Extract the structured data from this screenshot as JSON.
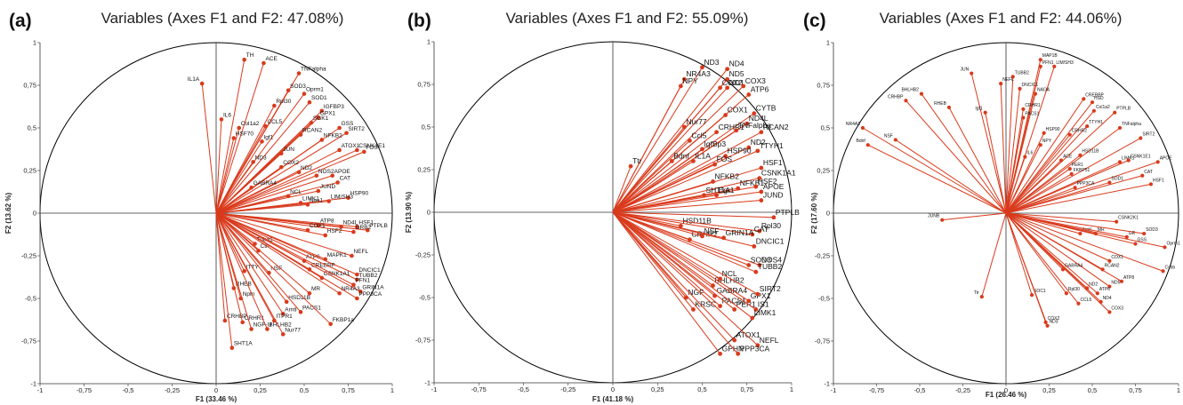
{
  "colors": {
    "vector": "#d93a1c",
    "axis": "#333333",
    "circle": "#000000"
  },
  "chart_data": [
    {
      "type": "scatter",
      "panel_label": "(a)",
      "title": "Variables (Axes F1 and F2: 47.08%)",
      "xlabel": "F1 (33.46 %)",
      "ylabel": "F2 (13.62 %)",
      "xlim": [
        -1,
        1
      ],
      "ylim": [
        -1,
        1
      ],
      "xticks": [
        "-1",
        "-0,75",
        "-0,5",
        "-0,25",
        "0",
        "0,25",
        "0,5",
        "0,75",
        "1"
      ],
      "yticks": [
        "-1",
        "-0,75",
        "-0,5",
        "-0,25",
        "0",
        "0,25",
        "0,5",
        "0,75",
        "1"
      ],
      "grid": false,
      "points": [
        {
          "label": "IL1A",
          "x": -0.08,
          "y": 0.76
        },
        {
          "label": "IL6",
          "x": 0.03,
          "y": 0.55
        },
        {
          "label": "TH",
          "x": 0.16,
          "y": 0.9
        },
        {
          "label": "ACE",
          "x": 0.27,
          "y": 0.88
        },
        {
          "label": "Col1a2",
          "x": 0.13,
          "y": 0.5
        },
        {
          "label": "HSF70",
          "x": 0.1,
          "y": 0.44
        },
        {
          "label": "TNFalpha",
          "x": 0.47,
          "y": 0.82
        },
        {
          "label": "SOD3",
          "x": 0.41,
          "y": 0.72
        },
        {
          "label": "Oprm1",
          "x": 0.5,
          "y": 0.7
        },
        {
          "label": "Rpl30",
          "x": 0.33,
          "y": 0.63
        },
        {
          "label": "SOD1",
          "x": 0.53,
          "y": 0.65
        },
        {
          "label": "IGFBP3",
          "x": 0.6,
          "y": 0.6
        },
        {
          "label": "CCL5",
          "x": 0.28,
          "y": 0.51
        },
        {
          "label": "GPX1",
          "x": 0.58,
          "y": 0.56
        },
        {
          "label": "SGK1",
          "x": 0.54,
          "y": 0.53
        },
        {
          "label": "GSS",
          "x": 0.7,
          "y": 0.5
        },
        {
          "label": "SIRT2",
          "x": 0.74,
          "y": 0.47
        },
        {
          "label": "Igf1",
          "x": 0.26,
          "y": 0.42
        },
        {
          "label": "RCAN2",
          "x": 0.48,
          "y": 0.46
        },
        {
          "label": "NFKB2",
          "x": 0.6,
          "y": 0.43
        },
        {
          "label": "CSNK1E1",
          "x": 0.8,
          "y": 0.37
        },
        {
          "label": "ATOX1",
          "x": 0.7,
          "y": 0.37
        },
        {
          "label": "FOS",
          "x": 0.84,
          "y": 0.36
        },
        {
          "label": "JUN",
          "x": 0.37,
          "y": 0.35
        },
        {
          "label": "ND3",
          "x": 0.21,
          "y": 0.3
        },
        {
          "label": "COX2",
          "x": 0.37,
          "y": 0.27
        },
        {
          "label": "ND2",
          "x": 0.47,
          "y": 0.24
        },
        {
          "label": "NOS2",
          "x": 0.57,
          "y": 0.22
        },
        {
          "label": "APOE",
          "x": 0.66,
          "y": 0.22
        },
        {
          "label": "CAT",
          "x": 0.69,
          "y": 0.18
        },
        {
          "label": "JUND",
          "x": 0.58,
          "y": 0.13
        },
        {
          "label": "HSP90",
          "x": 0.75,
          "y": 0.09
        },
        {
          "label": "LIM/SH3",
          "x": 0.64,
          "y": 0.07
        },
        {
          "label": "Nos1",
          "x": 0.52,
          "y": 0.05
        },
        {
          "label": "GABRA4",
          "x": 0.2,
          "y": 0.15
        },
        {
          "label": "NCL",
          "x": 0.41,
          "y": 0.1
        },
        {
          "label": "LIMK1",
          "x": 0.48,
          "y": 0.06
        },
        {
          "label": "ATP8",
          "x": 0.58,
          "y": -0.07
        },
        {
          "label": "ND4L",
          "x": 0.71,
          "y": -0.08
        },
        {
          "label": "HSF1",
          "x": 0.8,
          "y": -0.08
        },
        {
          "label": "PTPLB",
          "x": 0.86,
          "y": -0.1
        },
        {
          "label": "GRB2",
          "x": 0.78,
          "y": -0.11
        },
        {
          "label": "HSF2",
          "x": 0.62,
          "y": -0.13
        },
        {
          "label": "COX1",
          "x": 0.52,
          "y": -0.1
        },
        {
          "label": "Tuba1",
          "x": 0.22,
          "y": -0.18
        },
        {
          "label": "Ctn",
          "x": 0.24,
          "y": -0.22
        },
        {
          "label": "NEFL",
          "x": 0.77,
          "y": -0.25
        },
        {
          "label": "ATP6",
          "x": 0.5,
          "y": -0.28
        },
        {
          "label": "MAPK1",
          "x": 0.62,
          "y": -0.27
        },
        {
          "label": "CREBBP",
          "x": 0.53,
          "y": -0.33
        },
        {
          "label": "NSF",
          "x": 0.3,
          "y": -0.35
        },
        {
          "label": "ITTY",
          "x": 0.16,
          "y": -0.34
        },
        {
          "label": "DNCIC1",
          "x": 0.8,
          "y": -0.36
        },
        {
          "label": "TUBB2",
          "x": 0.8,
          "y": -0.39
        },
        {
          "label": "CSNK1A1",
          "x": 0.6,
          "y": -0.38
        },
        {
          "label": "PFN1",
          "x": 0.78,
          "y": -0.42
        },
        {
          "label": "GRIN1A",
          "x": 0.82,
          "y": -0.46
        },
        {
          "label": "PPP3CA",
          "x": 0.8,
          "y": -0.5
        },
        {
          "label": "NR4A3",
          "x": 0.7,
          "y": -0.47
        },
        {
          "label": "MR",
          "x": 0.53,
          "y": -0.47
        },
        {
          "label": "RHEB",
          "x": 0.1,
          "y": -0.44
        },
        {
          "label": "Nptn",
          "x": 0.14,
          "y": -0.5
        },
        {
          "label": "HSD11B",
          "x": 0.4,
          "y": -0.52
        },
        {
          "label": "PACS1",
          "x": 0.48,
          "y": -0.58
        },
        {
          "label": "Arntl",
          "x": 0.38,
          "y": -0.59
        },
        {
          "label": "ITPR1",
          "x": 0.33,
          "y": -0.63
        },
        {
          "label": "CRHBP",
          "x": 0.05,
          "y": -0.63
        },
        {
          "label": "CRHR1",
          "x": 0.15,
          "y": -0.64
        },
        {
          "label": "FKBP1a",
          "x": 0.65,
          "y": -0.65
        },
        {
          "label": "BHLHB2",
          "x": 0.29,
          "y": -0.68
        },
        {
          "label": "NGF-U",
          "x": 0.2,
          "y": -0.68
        },
        {
          "label": "Nur77",
          "x": 0.38,
          "y": -0.71
        },
        {
          "label": "SHT1A",
          "x": 0.09,
          "y": -0.79
        }
      ]
    },
    {
      "type": "scatter",
      "panel_label": "(b)",
      "title": "Variables (Axes F1 and F2: 55.09%)",
      "xlabel": "F1 (41.18 %)",
      "ylabel": "F2 (13.90 %)",
      "xlim": [
        -1,
        1
      ],
      "ylim": [
        -1,
        1
      ],
      "xticks": [
        "-1",
        "-0,75",
        "-0,5",
        "-0,25",
        "0",
        "0,25",
        "0,5",
        "0,75",
        "1"
      ],
      "yticks": [
        "-1",
        "-0,75",
        "-0,5",
        "-0,25",
        "0",
        "0,25",
        "0,5",
        "0,75",
        "1"
      ],
      "grid": false,
      "points": [
        {
          "label": "ND3",
          "x": 0.5,
          "y": 0.85
        },
        {
          "label": "ND4",
          "x": 0.64,
          "y": 0.84
        },
        {
          "label": "NR4A3",
          "x": 0.4,
          "y": 0.78
        },
        {
          "label": "ND5",
          "x": 0.64,
          "y": 0.78
        },
        {
          "label": "NPY",
          "x": 0.38,
          "y": 0.74
        },
        {
          "label": "COX2",
          "x": 0.6,
          "y": 0.73
        },
        {
          "label": "ND1",
          "x": 0.64,
          "y": 0.73
        },
        {
          "label": "COX3",
          "x": 0.73,
          "y": 0.74
        },
        {
          "label": "ATP6",
          "x": 0.76,
          "y": 0.69
        },
        {
          "label": "COX1",
          "x": 0.63,
          "y": 0.57
        },
        {
          "label": "CYTB",
          "x": 0.79,
          "y": 0.58
        },
        {
          "label": "ND4L",
          "x": 0.75,
          "y": 0.52
        },
        {
          "label": "RCAN2",
          "x": 0.83,
          "y": 0.47
        },
        {
          "label": "Nur77",
          "x": 0.4,
          "y": 0.5
        },
        {
          "label": "CRHR1",
          "x": 0.58,
          "y": 0.47
        },
        {
          "label": "TNFalpha",
          "x": 0.69,
          "y": 0.48
        },
        {
          "label": "Ccl5",
          "x": 0.43,
          "y": 0.42
        },
        {
          "label": "IgfBp3",
          "x": 0.5,
          "y": 0.37
        },
        {
          "label": "ND2",
          "x": 0.76,
          "y": 0.38
        },
        {
          "label": "TTYH1",
          "x": 0.81,
          "y": 0.36
        },
        {
          "label": "HSP90",
          "x": 0.63,
          "y": 0.33
        },
        {
          "label": "IL1A",
          "x": 0.45,
          "y": 0.3
        },
        {
          "label": "FOS",
          "x": 0.57,
          "y": 0.28
        },
        {
          "label": "Bdnf",
          "x": 0.33,
          "y": 0.3
        },
        {
          "label": "Ttr",
          "x": 0.1,
          "y": 0.27
        },
        {
          "label": "HSF1",
          "x": 0.83,
          "y": 0.26
        },
        {
          "label": "CSNK1A1",
          "x": 0.82,
          "y": 0.2
        },
        {
          "label": "NFKB2",
          "x": 0.56,
          "y": 0.18
        },
        {
          "label": "NFKB1",
          "x": 0.7,
          "y": 0.14
        },
        {
          "label": "HSF2",
          "x": 0.8,
          "y": 0.15
        },
        {
          "label": "APOE",
          "x": 0.83,
          "y": 0.12
        },
        {
          "label": "JUND",
          "x": 0.83,
          "y": 0.07
        },
        {
          "label": "SHT1A",
          "x": 0.51,
          "y": 0.1
        },
        {
          "label": "Egr1",
          "x": 0.58,
          "y": 0.1
        },
        {
          "label": "HSD11B",
          "x": 0.38,
          "y": -0.08
        },
        {
          "label": "CRHR2",
          "x": 0.43,
          "y": -0.16
        },
        {
          "label": "PTPLB",
          "x": 0.9,
          "y": -0.03
        },
        {
          "label": "Rpl30",
          "x": 0.82,
          "y": -0.11
        },
        {
          "label": "CAT",
          "x": 0.78,
          "y": -0.13
        },
        {
          "label": "NSF",
          "x": 0.5,
          "y": -0.14
        },
        {
          "label": "GRIN1A",
          "x": 0.62,
          "y": -0.15
        },
        {
          "label": "DNCIC1",
          "x": 0.79,
          "y": -0.2
        },
        {
          "label": "SOD3",
          "x": 0.76,
          "y": -0.31
        },
        {
          "label": "NOS4",
          "x": 0.82,
          "y": -0.31
        },
        {
          "label": "TUBB2",
          "x": 0.8,
          "y": -0.35
        },
        {
          "label": "BHLHB2",
          "x": 0.56,
          "y": -0.43
        },
        {
          "label": "NCL",
          "x": 0.6,
          "y": -0.39
        },
        {
          "label": "GABRA4",
          "x": 0.57,
          "y": -0.49
        },
        {
          "label": "PACS1",
          "x": 0.6,
          "y": -0.55
        },
        {
          "label": "KRSC",
          "x": 0.45,
          "y": -0.57
        },
        {
          "label": "NGF",
          "x": 0.41,
          "y": -0.5
        },
        {
          "label": "PER1",
          "x": 0.68,
          "y": -0.57
        },
        {
          "label": "GPX1",
          "x": 0.76,
          "y": -0.52
        },
        {
          "label": "IS1",
          "x": 0.8,
          "y": -0.57
        },
        {
          "label": "SIRT2",
          "x": 0.81,
          "y": -0.48
        },
        {
          "label": "LIMK1",
          "x": 0.78,
          "y": -0.62
        },
        {
          "label": "ATOX1",
          "x": 0.68,
          "y": -0.75
        },
        {
          "label": "NEFL",
          "x": 0.81,
          "y": -0.78
        },
        {
          "label": "GPHN",
          "x": 0.6,
          "y": -0.83
        },
        {
          "label": "PPP3CA",
          "x": 0.7,
          "y": -0.83
        }
      ]
    },
    {
      "type": "scatter",
      "panel_label": "(c)",
      "title": "Variables (Axes F1 and F2: 44.06%)",
      "xlabel": "F1 (26.46 %)",
      "ylabel": "F2 (17.60 %)",
      "xlim": [
        -1,
        1
      ],
      "ylim": [
        -1,
        1
      ],
      "xticks": [
        "-1",
        "-0,75",
        "-0,5",
        "-0,25",
        "0",
        "0,25",
        "0,5",
        "0,75",
        "1"
      ],
      "yticks": [
        "-1",
        "-0,75",
        "-0,5",
        "-0,25",
        "0",
        "0,25",
        "0,5",
        "0,75",
        "1"
      ],
      "grid": false,
      "points": [
        {
          "label": "JUN",
          "x": -0.2,
          "y": 0.82
        },
        {
          "label": "NR4A3",
          "x": -0.83,
          "y": 0.5
        },
        {
          "label": "Bdnf",
          "x": -0.8,
          "y": 0.4
        },
        {
          "label": "NSF",
          "x": -0.64,
          "y": 0.43
        },
        {
          "label": "CRHBP",
          "x": -0.58,
          "y": 0.66
        },
        {
          "label": "BHLHB2",
          "x": -0.49,
          "y": 0.7
        },
        {
          "label": "RHEB",
          "x": -0.33,
          "y": 0.62
        },
        {
          "label": "Igf1",
          "x": -0.12,
          "y": 0.59
        },
        {
          "label": "MAP1B",
          "x": 0.2,
          "y": 0.9
        },
        {
          "label": "PFN1",
          "x": 0.2,
          "y": 0.86
        },
        {
          "label": "LIM/SH3",
          "x": 0.28,
          "y": 0.86
        },
        {
          "label": "TUBB2",
          "x": 0.04,
          "y": 0.8
        },
        {
          "label": "NEFL",
          "x": -0.03,
          "y": 0.76
        },
        {
          "label": "DNCIC1",
          "x": 0.08,
          "y": 0.73
        },
        {
          "label": "NAOA",
          "x": 0.17,
          "y": 0.7
        },
        {
          "label": "CREBBP",
          "x": 0.45,
          "y": 0.67
        },
        {
          "label": "HSD",
          "x": 0.5,
          "y": 0.65
        },
        {
          "label": "PTPLB",
          "x": 0.63,
          "y": 0.59
        },
        {
          "label": "Col1a2",
          "x": 0.51,
          "y": 0.6
        },
        {
          "label": "CRHR1",
          "x": 0.1,
          "y": 0.61
        },
        {
          "label": "PACS1",
          "x": 0.1,
          "y": 0.56
        },
        {
          "label": "TTYH1",
          "x": 0.47,
          "y": 0.51
        },
        {
          "label": "TNFalpha",
          "x": 0.66,
          "y": 0.5
        },
        {
          "label": "SIRT2",
          "x": 0.78,
          "y": 0.44
        },
        {
          "label": "CRHR2",
          "x": 0.37,
          "y": 0.46
        },
        {
          "label": "HSP90",
          "x": 0.22,
          "y": 0.47
        },
        {
          "label": "NPY",
          "x": 0.2,
          "y": 0.4
        },
        {
          "label": "IL6",
          "x": 0.11,
          "y": 0.33
        },
        {
          "label": "HSD11B",
          "x": 0.43,
          "y": 0.34
        },
        {
          "label": "ACE",
          "x": 0.32,
          "y": 0.31
        },
        {
          "label": "PER1",
          "x": 0.37,
          "y": 0.26
        },
        {
          "label": "FKBP51",
          "x": 0.38,
          "y": 0.23
        },
        {
          "label": "LIMK1",
          "x": 0.66,
          "y": 0.3
        },
        {
          "label": "CSNK1E1",
          "x": 0.71,
          "y": 0.31
        },
        {
          "label": "APOE",
          "x": 0.88,
          "y": 0.3
        },
        {
          "label": "CAT",
          "x": 0.79,
          "y": 0.22
        },
        {
          "label": "HSF1",
          "x": 0.84,
          "y": 0.17
        },
        {
          "label": "PPP3CA",
          "x": 0.4,
          "y": 0.15
        },
        {
          "label": "SOD1",
          "x": 0.6,
          "y": 0.18
        },
        {
          "label": "CSNK2K1",
          "x": 0.64,
          "y": -0.05
        },
        {
          "label": "JUNB",
          "x": -0.37,
          "y": -0.04
        },
        {
          "label": "Arntl",
          "x": 0.43,
          "y": -0.12
        },
        {
          "label": "MR",
          "x": 0.52,
          "y": -0.12
        },
        {
          "label": "GR",
          "x": 0.7,
          "y": -0.14
        },
        {
          "label": "GSS",
          "x": 0.75,
          "y": -0.18
        },
        {
          "label": "SOD3",
          "x": 0.8,
          "y": -0.12
        },
        {
          "label": "Oprm1",
          "x": 0.92,
          "y": -0.2
        },
        {
          "label": "Cybb",
          "x": 0.91,
          "y": -0.34
        },
        {
          "label": "COX1",
          "x": 0.6,
          "y": -0.28
        },
        {
          "label": "RCAN2",
          "x": 0.56,
          "y": -0.33
        },
        {
          "label": "ATP8",
          "x": 0.67,
          "y": -0.4
        },
        {
          "label": "ND5",
          "x": 0.6,
          "y": -0.43
        },
        {
          "label": "ATP6",
          "x": 0.53,
          "y": -0.47
        },
        {
          "label": "ND4",
          "x": 0.55,
          "y": -0.52
        },
        {
          "label": "COX3",
          "x": 0.6,
          "y": -0.58
        },
        {
          "label": "ND2",
          "x": 0.47,
          "y": -0.44
        },
        {
          "label": "GABRA4",
          "x": 0.33,
          "y": -0.33
        },
        {
          "label": "Rpl30",
          "x": 0.35,
          "y": -0.47
        },
        {
          "label": "CCL5",
          "x": 0.42,
          "y": -0.53
        },
        {
          "label": "SOC1",
          "x": 0.15,
          "y": -0.48
        },
        {
          "label": "Ttr",
          "x": -0.14,
          "y": -0.49
        },
        {
          "label": "COX2",
          "x": 0.23,
          "y": -0.64
        },
        {
          "label": "ND3",
          "x": 0.24,
          "y": -0.66
        }
      ]
    }
  ]
}
